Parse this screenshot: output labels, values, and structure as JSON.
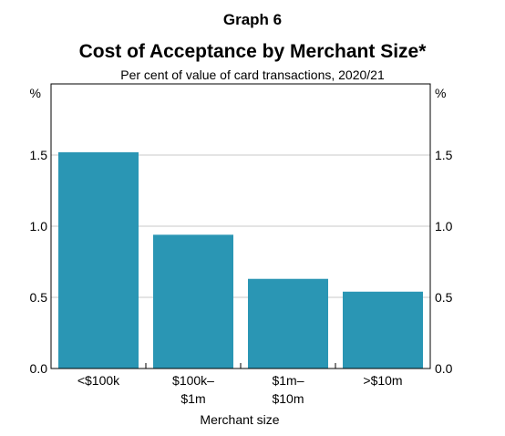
{
  "graph_label": "Graph 6",
  "chart_data": {
    "type": "bar",
    "title": "Cost of Acceptance by Merchant Size*",
    "subtitle": "Per cent of value of card transactions, 2020/21",
    "categories": [
      [
        "<$100k"
      ],
      [
        "$100k–",
        "$1m"
      ],
      [
        "$1m–",
        "$10m"
      ],
      [
        ">$10m"
      ]
    ],
    "values": [
      1.52,
      0.94,
      0.63,
      0.54
    ],
    "xlabel": "Merchant size",
    "ylabel_left": "%",
    "ylabel_right": "%",
    "ylim": [
      0,
      2.0
    ],
    "yticks": [
      "0.0",
      "0.5",
      "1.0",
      "1.5"
    ],
    "ytick_values": [
      0,
      0.5,
      1.0,
      1.5
    ],
    "grid": true,
    "bar_color": "#2a96b4"
  }
}
